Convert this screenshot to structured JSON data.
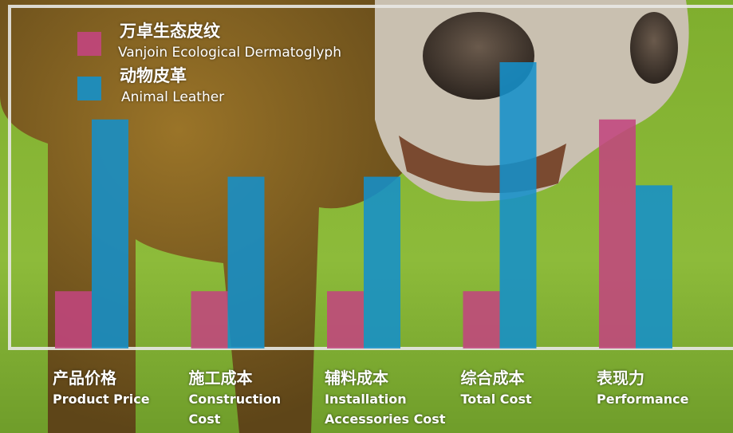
{
  "chart_data": {
    "type": "bar",
    "categories": [
      "产品价格",
      "施工成本",
      "辅料成本",
      "综合成本",
      "表现力"
    ],
    "category_subtitles": [
      "Product Price",
      "Construction Cost",
      "Installation Accessories Cost",
      "Total Cost",
      "Performance"
    ],
    "series": [
      {
        "name": "万卓生态皮纹",
        "subtitle": "Vanjoin Ecological Dermatoglyph",
        "color": "#c2457e",
        "values": [
          20,
          20,
          20,
          20,
          80
        ]
      },
      {
        "name": "动物皮革",
        "subtitle": "Animal Leather",
        "color": "#1590c9",
        "values": [
          80,
          60,
          60,
          100,
          57
        ]
      }
    ],
    "ylim": [
      0,
      100
    ]
  }
}
